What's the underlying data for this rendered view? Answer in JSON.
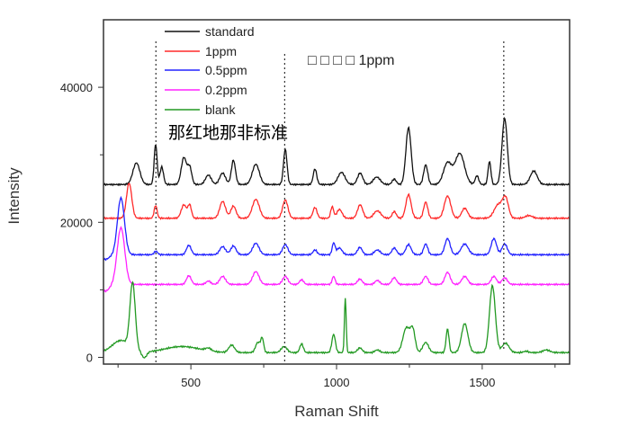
{
  "chart_data": {
    "type": "line",
    "title": "",
    "xlabel": "Raman Shift",
    "ylabel": "Intensity",
    "xlim": [
      200,
      1800
    ],
    "ylim": [
      -1000,
      50000
    ],
    "xticks": [
      500,
      1000,
      1500
    ],
    "xticks_minor": [
      250,
      750,
      1250,
      1750
    ],
    "yticks": [
      0,
      20000,
      40000
    ],
    "yticks_minor": [
      10000,
      30000
    ],
    "xtick_labels": [
      "500",
      "1000",
      "1500"
    ],
    "ytick_labels": [
      "0",
      "20000",
      "40000"
    ],
    "grid": false,
    "legend_position": "top-left",
    "reference_lines_x": [
      380,
      822,
      1574
    ],
    "annotations": [
      "□ □ □ □ 1ppm",
      "那红地那非标准"
    ],
    "series_model": "baseline plus gaussian peaks [center, amplitude, width] in data units",
    "series": [
      {
        "name": "standard",
        "color": "#111111",
        "baseline": 25600,
        "peaks": [
          [
            313,
            3200,
            12
          ],
          [
            379,
            6000,
            5
          ],
          [
            400,
            2600,
            6
          ],
          [
            476,
            4000,
            9
          ],
          [
            496,
            2500,
            7
          ],
          [
            560,
            1400,
            10
          ],
          [
            609,
            1700,
            10
          ],
          [
            646,
            3600,
            7
          ],
          [
            723,
            3000,
            12
          ],
          [
            824,
            5200,
            6
          ],
          [
            926,
            2300,
            6
          ],
          [
            1017,
            1800,
            12
          ],
          [
            1081,
            1700,
            9
          ],
          [
            1138,
            1100,
            12
          ],
          [
            1198,
            800,
            7
          ],
          [
            1247,
            8400,
            9
          ],
          [
            1306,
            2900,
            7
          ],
          [
            1381,
            3200,
            14
          ],
          [
            1423,
            4600,
            16
          ],
          [
            1482,
            1300,
            6
          ],
          [
            1525,
            3400,
            5
          ],
          [
            1577,
            9800,
            9
          ],
          [
            1677,
            2000,
            12
          ]
        ]
      },
      {
        "name": "1ppm",
        "color": "#ff2a2a",
        "baseline": 20600,
        "peaks": [
          [
            288,
            5200,
            9
          ],
          [
            379,
            1900,
            5
          ],
          [
            476,
            2000,
            9
          ],
          [
            496,
            1900,
            6
          ],
          [
            609,
            2500,
            10
          ],
          [
            646,
            1800,
            9
          ],
          [
            723,
            2800,
            12
          ],
          [
            824,
            2700,
            9
          ],
          [
            926,
            1600,
            7
          ],
          [
            985,
            1700,
            5
          ],
          [
            1010,
            1300,
            9
          ],
          [
            1081,
            2000,
            9
          ],
          [
            1140,
            1100,
            12
          ],
          [
            1198,
            1000,
            7
          ],
          [
            1247,
            3500,
            9
          ],
          [
            1306,
            2400,
            7
          ],
          [
            1381,
            3300,
            11
          ],
          [
            1440,
            1500,
            10
          ],
          [
            1555,
            2000,
            14
          ],
          [
            1580,
            2900,
            10
          ],
          [
            1660,
            400,
            12
          ]
        ]
      },
      {
        "name": "0.5ppm",
        "color": "#2222ff",
        "baseline": 15200,
        "peaks": [
          [
            205,
            -700,
            15
          ],
          [
            260,
            8400,
            12
          ],
          [
            380,
            500,
            6
          ],
          [
            493,
            1400,
            8
          ],
          [
            609,
            1200,
            10
          ],
          [
            646,
            1300,
            9
          ],
          [
            723,
            1700,
            11
          ],
          [
            824,
            1500,
            9
          ],
          [
            926,
            700,
            7
          ],
          [
            990,
            1700,
            5
          ],
          [
            1010,
            1000,
            9
          ],
          [
            1080,
            1100,
            8
          ],
          [
            1140,
            700,
            10
          ],
          [
            1198,
            1000,
            8
          ],
          [
            1247,
            1500,
            9
          ],
          [
            1306,
            1600,
            7
          ],
          [
            1381,
            2400,
            9
          ],
          [
            1440,
            1600,
            12
          ],
          [
            1540,
            2400,
            9
          ],
          [
            1577,
            1600,
            9
          ]
        ]
      },
      {
        "name": "0.2ppm",
        "color": "#ff22ff",
        "baseline": 10800,
        "peaks": [
          [
            205,
            -1000,
            15
          ],
          [
            260,
            8400,
            13
          ],
          [
            493,
            1300,
            8
          ],
          [
            560,
            500,
            8
          ],
          [
            609,
            1200,
            10
          ],
          [
            723,
            1900,
            11
          ],
          [
            824,
            1200,
            9
          ],
          [
            880,
            700,
            7
          ],
          [
            990,
            1200,
            5
          ],
          [
            1080,
            800,
            8
          ],
          [
            1140,
            600,
            8
          ],
          [
            1198,
            1000,
            8
          ],
          [
            1306,
            1200,
            8
          ],
          [
            1381,
            1800,
            9
          ],
          [
            1440,
            1200,
            10
          ],
          [
            1540,
            1200,
            9
          ],
          [
            1577,
            1000,
            9
          ]
        ]
      },
      {
        "name": "blank",
        "color": "#229922",
        "baseline": 700,
        "peaks": [
          [
            260,
            1800,
            30
          ],
          [
            300,
            9700,
            9
          ],
          [
            340,
            -900,
            8
          ],
          [
            470,
            900,
            60
          ],
          [
            560,
            400,
            10
          ],
          [
            640,
            1100,
            10
          ],
          [
            730,
            1500,
            8
          ],
          [
            745,
            2000,
            5
          ],
          [
            820,
            900,
            10
          ],
          [
            880,
            1300,
            6
          ],
          [
            990,
            2700,
            6
          ],
          [
            1030,
            8100,
            3
          ],
          [
            1080,
            700,
            8
          ],
          [
            1140,
            400,
            8
          ],
          [
            1240,
            3700,
            12
          ],
          [
            1262,
            3100,
            8
          ],
          [
            1306,
            1500,
            10
          ],
          [
            1381,
            3500,
            5
          ],
          [
            1440,
            4300,
            11
          ],
          [
            1535,
            9900,
            10
          ],
          [
            1580,
            1400,
            12
          ],
          [
            1650,
            200,
            8
          ],
          [
            1720,
            400,
            12
          ]
        ]
      }
    ]
  }
}
